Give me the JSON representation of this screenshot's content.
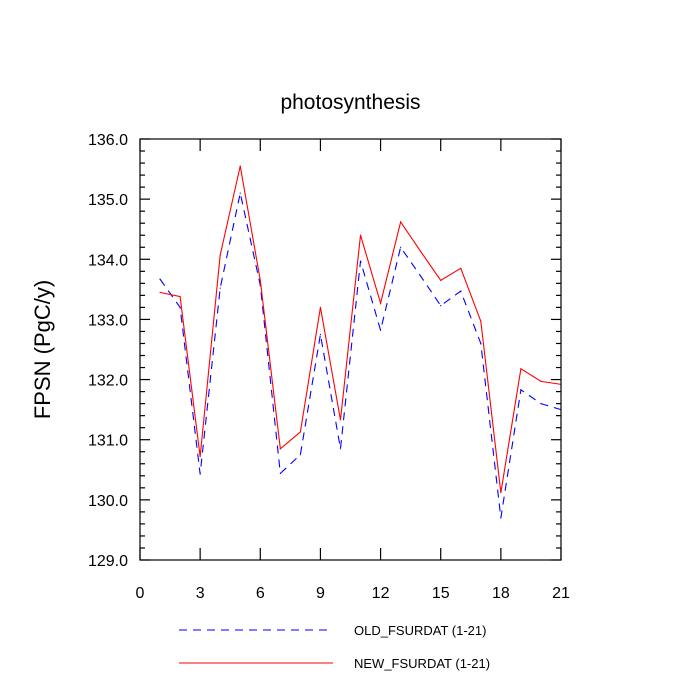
{
  "chart_data": {
    "type": "line",
    "title": "photosynthesis",
    "xlabel": "",
    "ylabel": "FPSN  (PgC/y)",
    "xlim": [
      0,
      21
    ],
    "ylim": [
      129.0,
      136.0
    ],
    "x_ticks": [
      0,
      3,
      6,
      9,
      12,
      15,
      18,
      21
    ],
    "x_tick_labels": [
      "0",
      "3",
      "6",
      "9",
      "12",
      "15",
      "18",
      "21"
    ],
    "y_ticks": [
      129.0,
      130.0,
      131.0,
      132.0,
      133.0,
      134.0,
      135.0,
      136.0
    ],
    "y_tick_labels": [
      "129.0",
      "130.0",
      "131.0",
      "132.0",
      "133.0",
      "134.0",
      "135.0",
      "136.0"
    ],
    "grid": false,
    "legend_position": "bottom",
    "x": [
      1,
      2,
      3,
      4,
      5,
      6,
      7,
      8,
      9,
      10,
      11,
      12,
      13,
      14,
      15,
      16,
      17,
      18,
      19,
      20,
      21
    ],
    "series": [
      {
        "name": "OLD_FSURDAT (1-21)",
        "color": "#0000ff",
        "dash": "dashed",
        "values": [
          133.67,
          133.2,
          130.43,
          133.52,
          135.1,
          133.57,
          130.44,
          130.75,
          132.75,
          130.85,
          133.97,
          132.82,
          134.2,
          133.72,
          133.23,
          133.47,
          132.6,
          129.7,
          131.83,
          131.6,
          131.5
        ]
      },
      {
        "name": "NEW_FSURDAT (1-21)",
        "color": "#ff0000",
        "dash": "solid",
        "values": [
          133.45,
          133.38,
          130.72,
          134.07,
          135.55,
          133.65,
          130.85,
          131.13,
          133.2,
          131.33,
          134.4,
          133.27,
          134.62,
          134.13,
          133.65,
          133.85,
          132.97,
          130.12,
          132.18,
          131.97,
          131.92
        ]
      }
    ]
  }
}
